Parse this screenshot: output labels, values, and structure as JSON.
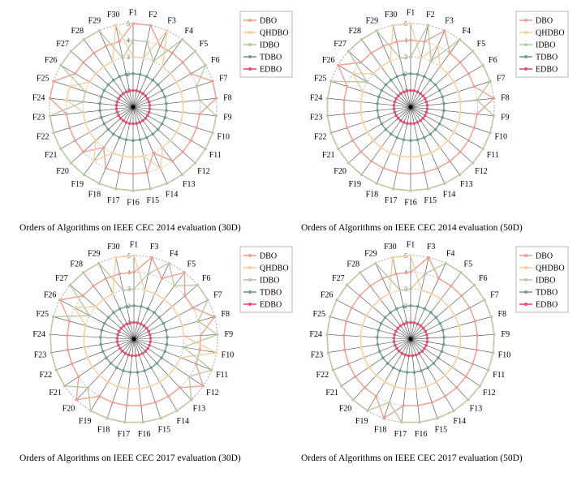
{
  "colors": {
    "DBO": "#f0a090",
    "QHDBO": "#f8cda0",
    "IDBO": "#b9c9a0",
    "TDBO": "#6e9c8c",
    "EDBO": "#e0506e",
    "ring": "#9a9a9a",
    "spoke": "#444444"
  },
  "chart_data": [
    {
      "type": "radar",
      "title": "Orders of Algorithms on IEEE CEC 2014 evaluation (30D)",
      "categories": [
        "F1",
        "F2",
        "F3",
        "F4",
        "F5",
        "F6",
        "F7",
        "F8",
        "F9",
        "F10",
        "F11",
        "F12",
        "F13",
        "F14",
        "F15",
        "F16",
        "F17",
        "F18",
        "F19",
        "F20",
        "F21",
        "F22",
        "F23",
        "F24",
        "F25",
        "F26",
        "F27",
        "F28",
        "F29",
        "F30"
      ],
      "rlim": [
        0,
        5
      ],
      "ring_labels": [
        "1",
        "2",
        "3",
        "4",
        "5"
      ],
      "legend_position": "top-right",
      "series": [
        {
          "name": "DBO",
          "values": [
            5,
            5,
            4,
            4,
            4,
            4,
            5,
            5,
            4,
            4,
            4,
            4,
            4,
            3,
            4,
            4,
            4,
            4,
            3,
            4,
            4,
            4,
            4,
            5,
            5,
            4,
            4,
            4,
            4,
            4
          ]
        },
        {
          "name": "QHDBO",
          "values": [
            3,
            3,
            5,
            3,
            3,
            3,
            3,
            3,
            3,
            3,
            3,
            3,
            3,
            4,
            3,
            3,
            3,
            3,
            4,
            3,
            3,
            3,
            3,
            4,
            4,
            3,
            3,
            3,
            3,
            5
          ]
        },
        {
          "name": "IDBO",
          "values": [
            4,
            4,
            3,
            5,
            5,
            5,
            4,
            4,
            5,
            5,
            5,
            5,
            5,
            5,
            5,
            5,
            5,
            5,
            5,
            5,
            5,
            5,
            5,
            3,
            3,
            5,
            5,
            5,
            5,
            3
          ]
        },
        {
          "name": "TDBO",
          "values": [
            2,
            2,
            2,
            2,
            2,
            2,
            2,
            2,
            2,
            2,
            2,
            2,
            2,
            2,
            2,
            2,
            2,
            2,
            2,
            2,
            2,
            2,
            2,
            2,
            2,
            2,
            2,
            2,
            2,
            2
          ]
        },
        {
          "name": "EDBO",
          "values": [
            1,
            1,
            1,
            1,
            1,
            1,
            1,
            1,
            1,
            1,
            1,
            1,
            1,
            1,
            1,
            1,
            1,
            1,
            1,
            1,
            1,
            1,
            1,
            1,
            1,
            1,
            1,
            1,
            1,
            1
          ]
        }
      ]
    },
    {
      "type": "radar",
      "title": "Orders of Algorithms on IEEE CEC 2014 evaluation (50D)",
      "categories": [
        "F1",
        "F2",
        "F3",
        "F4",
        "F5",
        "F6",
        "F7",
        "F8",
        "F9",
        "F10",
        "F11",
        "F12",
        "F13",
        "F14",
        "F15",
        "F16",
        "F17",
        "F18",
        "F19",
        "F20",
        "F21",
        "F22",
        "F23",
        "F24",
        "F25",
        "F26",
        "F27",
        "F28",
        "F29",
        "F30"
      ],
      "rlim": [
        0,
        5
      ],
      "ring_labels": [
        "1",
        "2",
        "3",
        "4",
        "5"
      ],
      "legend_position": "top-right",
      "series": [
        {
          "name": "DBO",
          "values": [
            4,
            4,
            5,
            4,
            4,
            4,
            4,
            5,
            4,
            4,
            4,
            4,
            4,
            4,
            4,
            4,
            4,
            4,
            4,
            4,
            4,
            4,
            4,
            4,
            4,
            5,
            4,
            4,
            4,
            4
          ]
        },
        {
          "name": "QHDBO",
          "values": [
            5,
            3,
            4,
            3,
            3,
            3,
            3,
            3,
            3,
            3,
            3,
            3,
            3,
            3,
            3,
            3,
            3,
            3,
            3,
            3,
            3,
            3,
            3,
            3,
            3,
            4,
            3,
            3,
            3,
            5
          ]
        },
        {
          "name": "IDBO",
          "values": [
            3,
            5,
            3,
            5,
            5,
            5,
            5,
            4,
            5,
            5,
            5,
            5,
            5,
            5,
            5,
            5,
            5,
            5,
            5,
            5,
            5,
            5,
            5,
            5,
            5,
            3,
            5,
            5,
            5,
            3
          ]
        },
        {
          "name": "TDBO",
          "values": [
            2,
            2,
            2,
            2,
            2,
            2,
            2,
            2,
            2,
            2,
            2,
            2,
            2,
            2,
            2,
            2,
            2,
            2,
            2,
            2,
            2,
            2,
            2,
            2,
            2,
            2,
            2,
            2,
            2,
            2
          ]
        },
        {
          "name": "EDBO",
          "values": [
            1,
            1,
            1,
            1,
            1,
            1,
            1,
            1,
            1,
            1,
            1,
            1,
            1,
            1,
            1,
            1,
            1,
            1,
            1,
            1,
            1,
            1,
            1,
            1,
            1,
            1,
            1,
            1,
            1,
            1
          ]
        }
      ]
    },
    {
      "type": "radar",
      "title": "Orders of Algorithms on IEEE CEC 2017 evaluation (30D)",
      "categories": [
        "F1",
        "F3",
        "F4",
        "F5",
        "F6",
        "F7",
        "F8",
        "F9",
        "F10",
        "F11",
        "F12",
        "F13",
        "F14",
        "F15",
        "F16",
        "F17",
        "F18",
        "F19",
        "F20",
        "F21",
        "F22",
        "F23",
        "F24",
        "F25",
        "F26",
        "F27",
        "F28",
        "F29",
        "F30"
      ],
      "rlim": [
        0,
        5
      ],
      "ring_labels": [
        "1",
        "2",
        "3",
        "4",
        "5"
      ],
      "legend_position": "top-right",
      "series": [
        {
          "name": "DBO",
          "values": [
            4,
            5,
            4,
            5,
            4,
            4,
            5,
            4,
            4,
            4,
            5,
            4,
            4,
            4,
            4,
            4,
            4,
            4,
            5,
            4,
            4,
            4,
            4,
            4,
            5,
            4,
            4,
            4,
            4
          ]
        },
        {
          "name": "QHDBO",
          "values": [
            5,
            3,
            3,
            3,
            3,
            3,
            3,
            3,
            5,
            3,
            3,
            3,
            3,
            3,
            3,
            3,
            3,
            3,
            3,
            3,
            3,
            3,
            3,
            3,
            4,
            3,
            3,
            3,
            5
          ]
        },
        {
          "name": "IDBO",
          "values": [
            3,
            4,
            5,
            4,
            5,
            5,
            4,
            5,
            3,
            5,
            4,
            5,
            5,
            5,
            5,
            5,
            5,
            5,
            4,
            5,
            5,
            5,
            5,
            5,
            3,
            5,
            5,
            5,
            3
          ]
        },
        {
          "name": "TDBO",
          "values": [
            2,
            2,
            2,
            2,
            2,
            2,
            2,
            2,
            2,
            2,
            2,
            2,
            2,
            2,
            2,
            2,
            2,
            2,
            2,
            2,
            2,
            2,
            2,
            2,
            2,
            2,
            2,
            2,
            2
          ]
        },
        {
          "name": "EDBO",
          "values": [
            1,
            1,
            1,
            1,
            1,
            1,
            1,
            1,
            1,
            1,
            1,
            1,
            1,
            1,
            1,
            1,
            1,
            1,
            1,
            1,
            1,
            1,
            1,
            1,
            1,
            1,
            1,
            1,
            1
          ]
        }
      ]
    },
    {
      "type": "radar",
      "title": "Orders of Algorithms on IEEE CEC 2017 evaluation (50D)",
      "categories": [
        "F1",
        "F3",
        "F4",
        "F5",
        "F6",
        "F7",
        "F8",
        "F9",
        "F10",
        "F11",
        "F12",
        "F13",
        "F14",
        "F15",
        "F16",
        "F17",
        "F18",
        "F19",
        "F20",
        "F21",
        "F22",
        "F23",
        "F24",
        "F25",
        "F26",
        "F27",
        "F28",
        "F29",
        "F30"
      ],
      "rlim": [
        0,
        5
      ],
      "ring_labels": [
        "1",
        "2",
        "3",
        "4",
        "5"
      ],
      "legend_position": "top-right",
      "series": [
        {
          "name": "DBO",
          "values": [
            4,
            5,
            4,
            4,
            4,
            4,
            4,
            4,
            4,
            4,
            4,
            4,
            4,
            4,
            4,
            4,
            5,
            4,
            4,
            4,
            4,
            4,
            4,
            4,
            4,
            4,
            4,
            4,
            4
          ]
        },
        {
          "name": "QHDBO",
          "values": [
            5,
            3,
            3,
            3,
            3,
            3,
            3,
            3,
            3,
            3,
            3,
            3,
            3,
            3,
            3,
            3,
            3,
            3,
            3,
            3,
            3,
            3,
            3,
            3,
            3,
            3,
            3,
            3,
            5
          ]
        },
        {
          "name": "IDBO",
          "values": [
            3,
            4,
            5,
            5,
            5,
            5,
            5,
            5,
            5,
            5,
            5,
            5,
            5,
            5,
            5,
            5,
            4,
            5,
            5,
            5,
            5,
            5,
            5,
            5,
            5,
            5,
            5,
            5,
            3
          ]
        },
        {
          "name": "TDBO",
          "values": [
            2,
            2,
            2,
            2,
            2,
            2,
            2,
            2,
            2,
            2,
            2,
            2,
            2,
            2,
            2,
            2,
            2,
            2,
            2,
            2,
            2,
            2,
            2,
            2,
            2,
            2,
            2,
            2,
            2
          ]
        },
        {
          "name": "EDBO",
          "values": [
            1,
            1,
            1,
            1,
            1,
            1,
            1,
            1,
            1,
            1,
            1,
            1,
            1,
            1,
            1,
            1,
            1,
            1,
            1,
            1,
            1,
            1,
            1,
            1,
            1,
            1,
            1,
            1,
            1
          ]
        }
      ]
    }
  ]
}
